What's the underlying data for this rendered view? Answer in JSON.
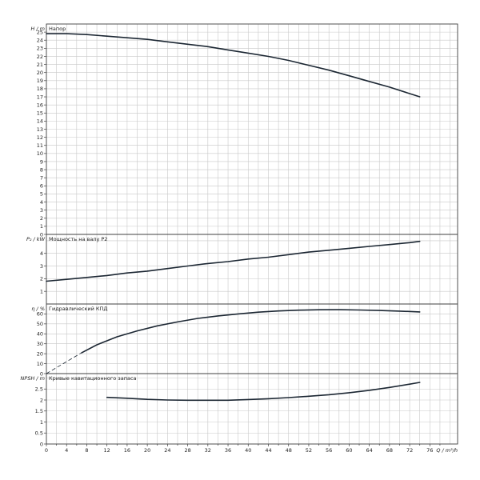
{
  "chart_data": [
    {
      "type": "line",
      "title": "Напор",
      "ylabel_symbol": "H",
      "ylabel_unit": "m",
      "ylim": [
        0,
        26
      ],
      "yticks": [
        0,
        1,
        2,
        3,
        4,
        5,
        6,
        7,
        8,
        9,
        10,
        11,
        12,
        13,
        14,
        15,
        16,
        17,
        18,
        19,
        20,
        21,
        22,
        23,
        24,
        25
      ],
      "series": [
        {
          "x": [
            0,
            4,
            8,
            12,
            16,
            20,
            24,
            28,
            32,
            36,
            40,
            44,
            48,
            52,
            56,
            60,
            64,
            68,
            72,
            74
          ],
          "y": [
            24.8,
            24.8,
            24.7,
            24.5,
            24.3,
            24.1,
            23.8,
            23.5,
            23.2,
            22.8,
            22.4,
            22.0,
            21.5,
            20.9,
            20.3,
            19.6,
            18.9,
            18.2,
            17.4,
            17.0
          ]
        }
      ]
    },
    {
      "type": "line",
      "title": "Мощность на валу P2",
      "ylabel_symbol": "P₂",
      "ylabel_unit": "kW",
      "ylim": [
        0,
        5.5
      ],
      "yticks": [
        1,
        2,
        3,
        4
      ],
      "series": [
        {
          "x": [
            0,
            4,
            8,
            12,
            16,
            20,
            24,
            28,
            32,
            36,
            40,
            44,
            48,
            52,
            56,
            60,
            64,
            68,
            72,
            74
          ],
          "y": [
            1.8,
            1.95,
            2.1,
            2.25,
            2.45,
            2.6,
            2.8,
            3.0,
            3.2,
            3.35,
            3.55,
            3.7,
            3.9,
            4.1,
            4.25,
            4.4,
            4.55,
            4.7,
            4.85,
            4.95
          ]
        }
      ]
    },
    {
      "type": "line",
      "title": "Гидравлический КПД",
      "ylabel_symbol": "η",
      "ylabel_unit": "%",
      "ylim": [
        0,
        70
      ],
      "yticks": [
        0,
        10,
        20,
        30,
        40,
        50,
        60
      ],
      "series": [
        {
          "x": [
            0,
            2,
            4,
            6,
            7
          ],
          "y": [
            0,
            6,
            12,
            18,
            21
          ],
          "style": "dashed"
        },
        {
          "x": [
            7,
            10,
            14,
            18,
            22,
            26,
            30,
            34,
            38,
            42,
            46,
            50,
            54,
            58,
            62,
            66,
            70,
            74
          ],
          "y": [
            21,
            29,
            37,
            43,
            48,
            52,
            55.5,
            58,
            60,
            61.8,
            63,
            63.8,
            64.2,
            64.3,
            64,
            63.5,
            62.8,
            62
          ]
        }
      ]
    },
    {
      "type": "line",
      "title": "Кривые кавитационного запаса",
      "ylabel_symbol": "NPSH",
      "ylabel_unit": "m",
      "ylim": [
        0,
        3.2
      ],
      "yticks": [
        0,
        0.5,
        1,
        1.5,
        2,
        2.5
      ],
      "series": [
        {
          "x": [
            12,
            16,
            20,
            24,
            28,
            32,
            36,
            40,
            44,
            48,
            52,
            56,
            60,
            64,
            68,
            72,
            74
          ],
          "y": [
            2.12,
            2.08,
            2.03,
            2.0,
            1.99,
            1.99,
            1.99,
            2.02,
            2.06,
            2.11,
            2.17,
            2.24,
            2.33,
            2.44,
            2.57,
            2.72,
            2.8
          ]
        }
      ]
    }
  ],
  "x_axis": {
    "label_symbol": "Q",
    "label_unit": "m³/h",
    "ticks": [
      0,
      4,
      8,
      12,
      16,
      20,
      24,
      28,
      32,
      36,
      40,
      44,
      48,
      52,
      56,
      60,
      64,
      68,
      72,
      76
    ],
    "xlim": [
      0,
      81.5
    ]
  },
  "style": {
    "curve_color": "#1c2733",
    "grid_color": "#c8c8c8",
    "frame_color": "#404040"
  }
}
